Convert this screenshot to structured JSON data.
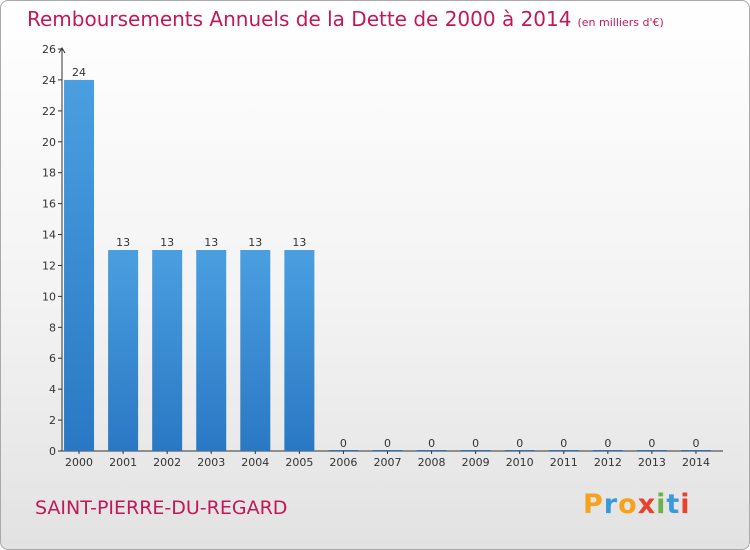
{
  "chart_data": {
    "type": "bar",
    "title": "Remboursements Annuels de la Dette de 2000 à 2014",
    "unit": "(en milliers d'€)",
    "categories": [
      "2000",
      "2001",
      "2002",
      "2003",
      "2004",
      "2005",
      "2006",
      "2007",
      "2008",
      "2009",
      "2010",
      "2011",
      "2012",
      "2013",
      "2014"
    ],
    "values": [
      24,
      13,
      13,
      13,
      13,
      13,
      0,
      0,
      0,
      0,
      0,
      0,
      0,
      0,
      0
    ],
    "ylim": [
      0,
      26
    ],
    "yticks": [
      0,
      2,
      4,
      6,
      8,
      10,
      12,
      14,
      16,
      18,
      20,
      22,
      24,
      26
    ],
    "xlabel": "",
    "ylabel": "",
    "grid": false,
    "bar_color": "#4a9fe0",
    "bar_color_dark": "#2a78c4"
  },
  "commune": "SAINT-PIERRE-DU-REGARD",
  "logo": {
    "letters": [
      "P",
      "r",
      "o",
      "x",
      "i",
      "t",
      "i"
    ],
    "colors": [
      "#f7a21b",
      "#3a9ad9",
      "#f7a21b",
      "#e8412c",
      "#6ab344",
      "#3a9ad9",
      "#e8412c"
    ]
  },
  "colors": {
    "title": "#c2185b",
    "axis": "#333333"
  }
}
